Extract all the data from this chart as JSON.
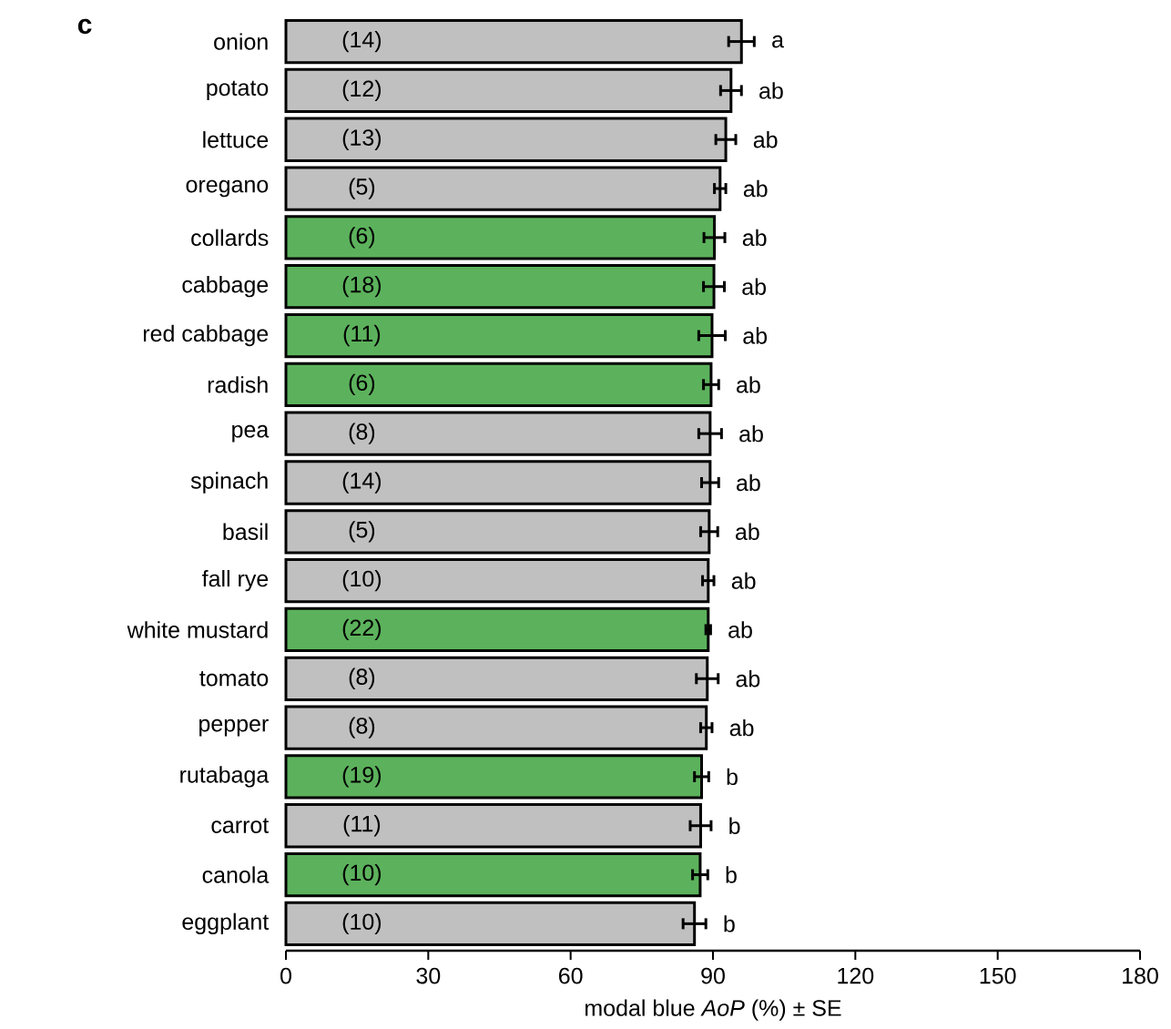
{
  "chart_data": {
    "type": "bar",
    "orientation": "horizontal",
    "title": "c",
    "xlabel": "modal blue *AoP* (%) ± SE",
    "categories": [
      "onion",
      "potato",
      "lettuce",
      "oregano",
      "collards",
      "cabbage",
      "red cabbage",
      "radish",
      "pea",
      "spinach",
      "basil",
      "fall rye",
      "white mustard",
      "tomato",
      "pepper",
      "rutabaga",
      "carrot",
      "canola",
      "eggplant"
    ],
    "values": [
      96.0,
      93.8,
      92.7,
      91.5,
      90.3,
      90.2,
      89.8,
      89.6,
      89.4,
      89.4,
      89.2,
      89.0,
      89.0,
      88.8,
      88.6,
      87.6,
      87.4,
      87.3,
      86.1
    ],
    "errors": [
      2.7,
      2.2,
      2.1,
      1.2,
      2.2,
      2.2,
      2.8,
      1.6,
      2.4,
      1.8,
      1.8,
      1.2,
      0.5,
      2.3,
      1.2,
      1.5,
      2.2,
      1.6,
      2.4
    ],
    "colors": [
      "#c0c0c0",
      "#c0c0c0",
      "#c0c0c0",
      "#c0c0c0",
      "#5cb25c",
      "#5cb25c",
      "#5cb25c",
      "#5cb25c",
      "#c0c0c0",
      "#c0c0c0",
      "#c0c0c0",
      "#c0c0c0",
      "#5cb25c",
      "#c0c0c0",
      "#c0c0c0",
      "#5cb25c",
      "#c0c0c0",
      "#5cb25c",
      "#c0c0c0"
    ],
    "xlim": [
      0,
      180
    ],
    "xticks": [
      0,
      30,
      60,
      90,
      120,
      150,
      180
    ],
    "annotations": [
      {
        "text": "(14)",
        "x": 16,
        "y": "onion"
      },
      {
        "text": "(12)",
        "x": 16,
        "y": "potato"
      },
      {
        "text": "(13)",
        "x": 16,
        "y": "lettuce"
      },
      {
        "text": "(5)",
        "x": 16,
        "y": "oregano"
      },
      {
        "text": "(6)",
        "x": 16,
        "y": "collards"
      },
      {
        "text": "(18)",
        "x": 16,
        "y": "cabbage"
      },
      {
        "text": "(11)",
        "x": 16,
        "y": "red cabbage"
      },
      {
        "text": "(6)",
        "x": 16,
        "y": "radish"
      },
      {
        "text": "(8)",
        "x": 16,
        "y": "pea"
      },
      {
        "text": "(14)",
        "x": 16,
        "y": "spinach"
      },
      {
        "text": "(5)",
        "x": 16,
        "y": "basil"
      },
      {
        "text": "(10)",
        "x": 16,
        "y": "fall rye"
      },
      {
        "text": "(22)",
        "x": 16,
        "y": "white mustard"
      },
      {
        "text": "(8)",
        "x": 16,
        "y": "tomato"
      },
      {
        "text": "(8)",
        "x": 16,
        "y": "pepper"
      },
      {
        "text": "(19)",
        "x": 16,
        "y": "rutabaga"
      },
      {
        "text": "(11)",
        "x": 16,
        "y": "carrot"
      },
      {
        "text": "(10)",
        "x": 16,
        "y": "canola"
      },
      {
        "text": "(10)",
        "x": 16,
        "y": "eggplant"
      },
      {
        "text": "a",
        "x": 96.0,
        "y": "onion"
      },
      {
        "text": "ab",
        "x": 93.8,
        "y": "potato"
      },
      {
        "text": "ab",
        "x": 92.7,
        "y": "lettuce"
      },
      {
        "text": "ab",
        "x": 91.5,
        "y": "oregano"
      },
      {
        "text": "ab",
        "x": 90.3,
        "y": "collards"
      },
      {
        "text": "ab",
        "x": 90.2,
        "y": "cabbage"
      },
      {
        "text": "ab",
        "x": 89.8,
        "y": "red cabbage"
      },
      {
        "text": "ab",
        "x": 89.6,
        "y": "radish"
      },
      {
        "text": "ab",
        "x": 89.4,
        "y": "pea"
      },
      {
        "text": "ab",
        "x": 89.4,
        "y": "spinach"
      },
      {
        "text": "ab",
        "x": 89.2,
        "y": "basil"
      },
      {
        "text": "ab",
        "x": 89.0,
        "y": "fall rye"
      },
      {
        "text": "ab",
        "x": 89.0,
        "y": "white mustard"
      },
      {
        "text": "ab",
        "x": 88.8,
        "y": "tomato"
      },
      {
        "text": "ab",
        "x": 88.6,
        "y": "pepper"
      },
      {
        "text": "b",
        "x": 87.6,
        "y": "rutabaga"
      },
      {
        "text": "b",
        "x": 87.4,
        "y": "carrot"
      },
      {
        "text": "b",
        "x": 87.3,
        "y": "canola"
      },
      {
        "text": "b",
        "x": 86.1,
        "y": "eggplant"
      }
    ]
  }
}
